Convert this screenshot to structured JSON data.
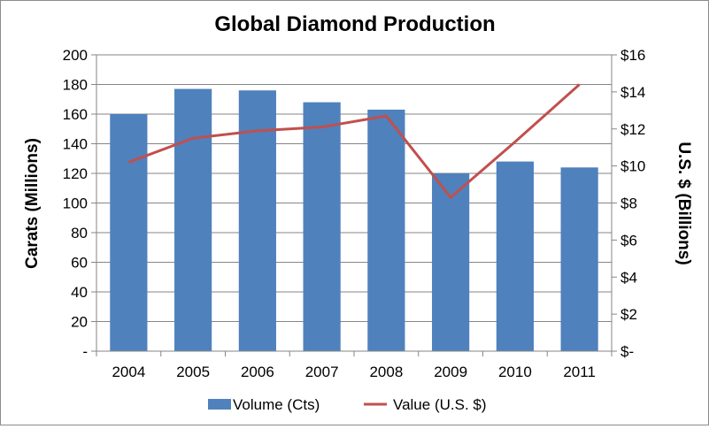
{
  "chart_data": {
    "type": "bar",
    "title": "Global Diamond Production",
    "categories": [
      "2004",
      "2005",
      "2006",
      "2007",
      "2008",
      "2009",
      "2010",
      "2011"
    ],
    "series": [
      {
        "name": "Volume (Cts)",
        "type": "bar",
        "axis": "left",
        "color": "#4f81bd",
        "values": [
          160,
          177,
          176,
          168,
          163,
          120,
          128,
          124
        ]
      },
      {
        "name": "Value (U.S. $)",
        "type": "line",
        "axis": "right",
        "color": "#c0504d",
        "values": [
          10.2,
          11.5,
          11.9,
          12.1,
          12.7,
          8.3,
          11.3,
          14.4
        ]
      }
    ],
    "ylabel": "Carats (Millions)",
    "ylabel_right": "U.S. $ (Billions)",
    "ylim": [
      0,
      200
    ],
    "ylim_right": [
      0,
      16
    ],
    "y_ticks": [
      "-",
      "20",
      "40",
      "60",
      "80",
      "100",
      "120",
      "140",
      "160",
      "180",
      "200"
    ],
    "y_right_ticks": [
      "$-",
      "$2",
      "$4",
      "$6",
      "$8",
      "$10",
      "$12",
      "$14",
      "$16"
    ],
    "grid": true,
    "legend": "bottom"
  }
}
